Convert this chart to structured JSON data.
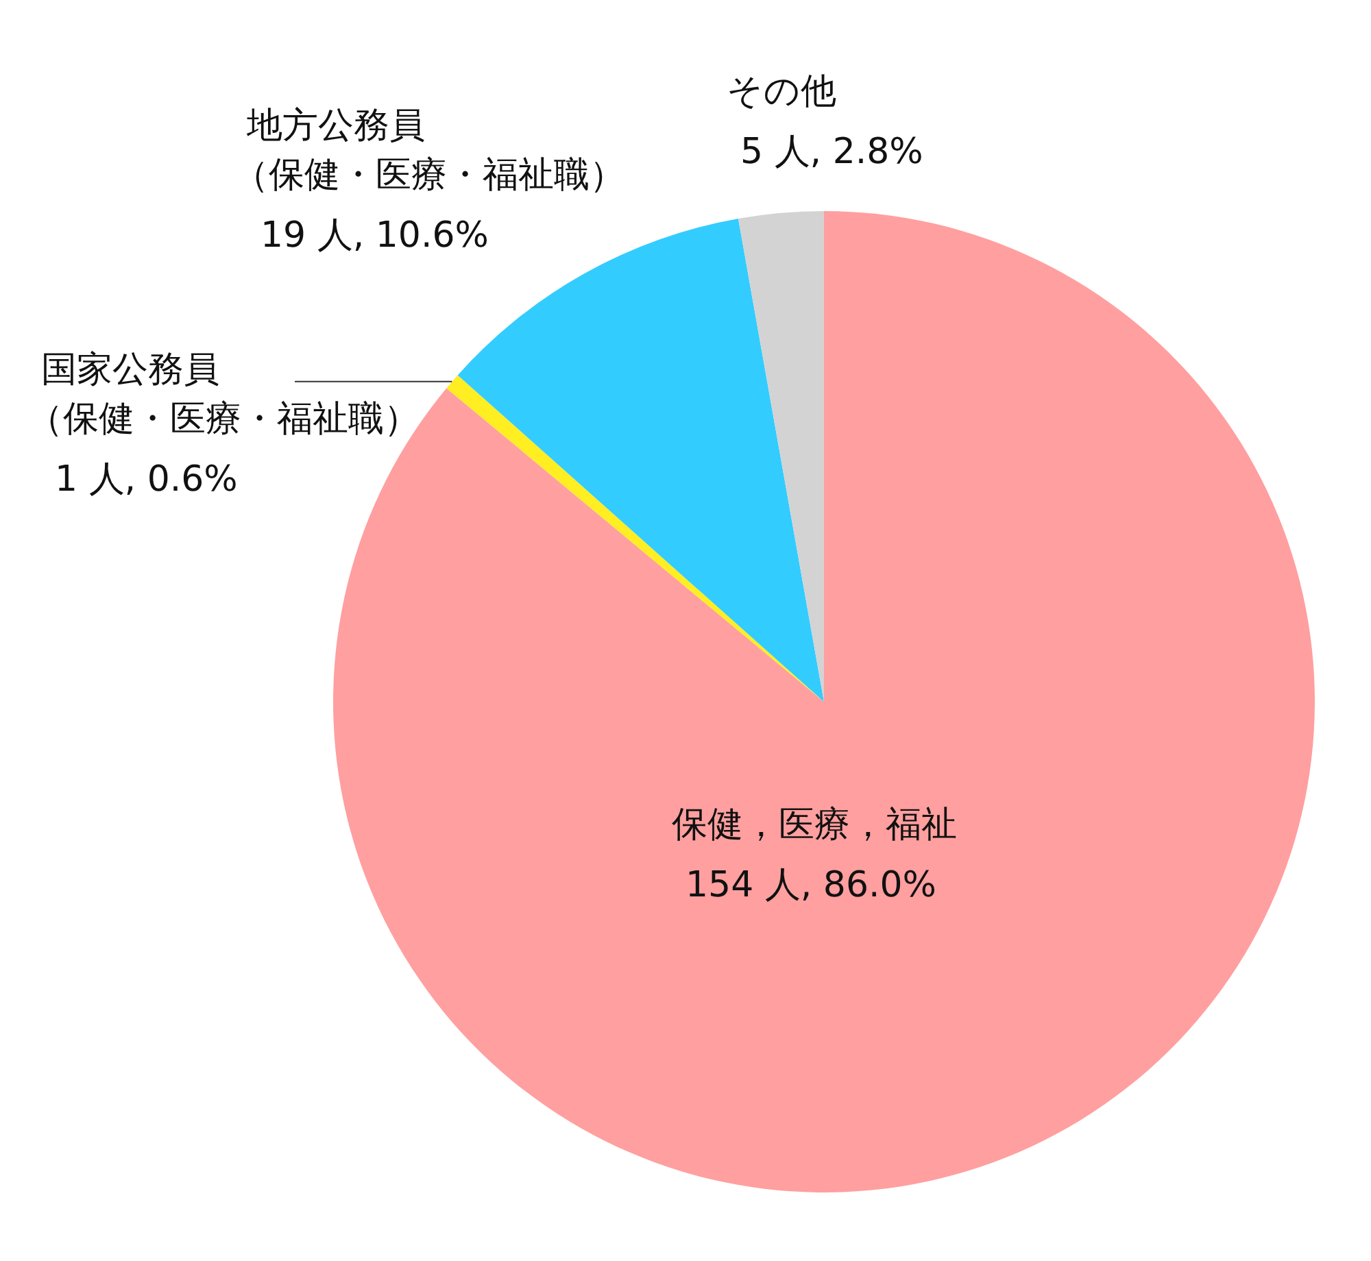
{
  "chart_data": {
    "type": "pie",
    "categories": [
      "保健，医療，福祉",
      "国家公務員（保健・医療・福祉職）",
      "地方公務員（保健・医療・福祉職）",
      "その他"
    ],
    "values": [
      154,
      1,
      19,
      5
    ],
    "value_labels": [
      "154 人, 86.0%",
      "1 人, 0.6%",
      "19 人, 10.6%",
      "5 人, 2.8%"
    ],
    "colors": [
      "#ff9f9f",
      "#ffee22",
      "#33ccff",
      "#d3d3d3"
    ]
  }
}
